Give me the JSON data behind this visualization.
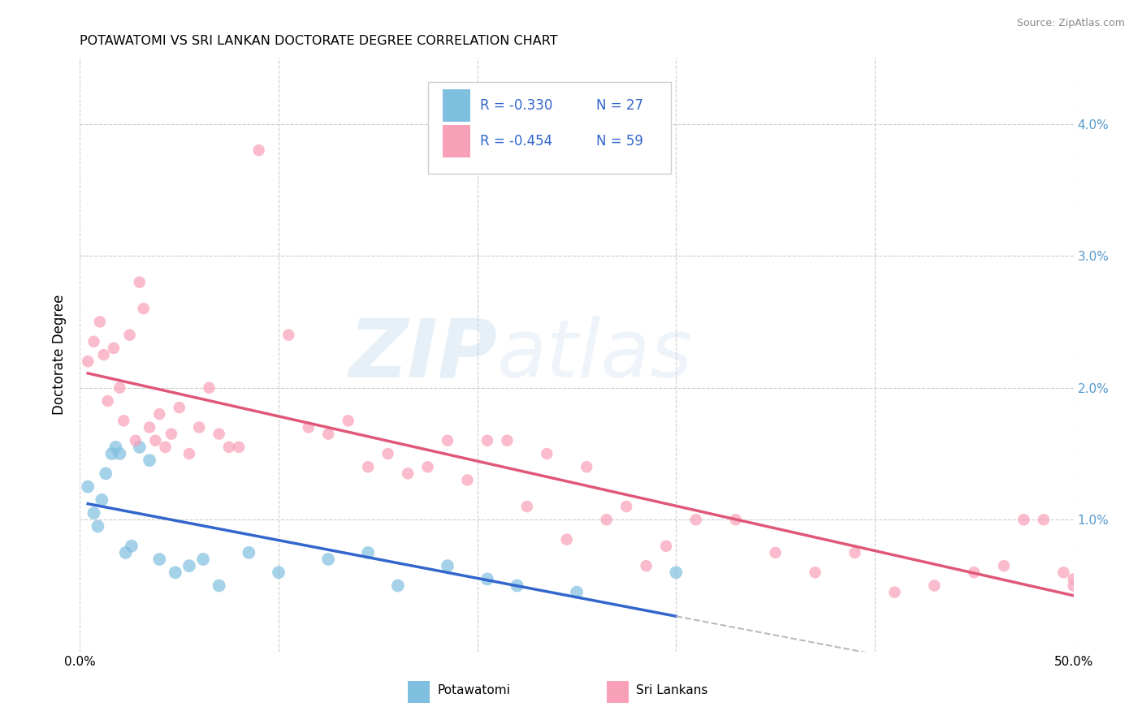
{
  "title": "POTAWATOMI VS SRI LANKAN DOCTORATE DEGREE CORRELATION CHART",
  "source": "Source: ZipAtlas.com",
  "ylabel": "Doctorate Degree",
  "watermark_zip": "ZIP",
  "watermark_atlas": "atlas",
  "legend_r1": "R = -0.330",
  "legend_n1": "N = 27",
  "legend_r2": "R = -0.454",
  "legend_n2": "N = 59",
  "legend_label1": "Potawatomi",
  "legend_label2": "Sri Lankans",
  "xlim": [
    0.0,
    50.0
  ],
  "ylim": [
    0.0,
    4.5
  ],
  "yticks": [
    0.0,
    1.0,
    2.0,
    3.0,
    4.0
  ],
  "ytick_labels": [
    "",
    "1.0%",
    "2.0%",
    "3.0%",
    "4.0%"
  ],
  "xticks": [
    0.0,
    10.0,
    20.0,
    30.0,
    40.0,
    50.0
  ],
  "xtick_labels": [
    "0.0%",
    "",
    "",
    "",
    "",
    "50.0%"
  ],
  "color_blue": "#7fbfdf",
  "color_blue_line": "#3366cc",
  "color_pink": "#f8a0b8",
  "color_pink_line": "#e05878",
  "color_dashed": "#bbbbbb",
  "bg_color": "#ffffff",
  "grid_color": "#cccccc",
  "right_axis_color": "#5599cc",
  "marker_size_blue": 130,
  "marker_size_pink": 110,
  "potawatomi_x": [
    0.4,
    0.7,
    0.9,
    1.1,
    1.3,
    1.6,
    1.8,
    2.0,
    2.3,
    2.6,
    3.0,
    3.5,
    4.0,
    4.8,
    5.5,
    6.2,
    7.0,
    8.5,
    10.0,
    12.5,
    14.5,
    16.0,
    18.5,
    20.5,
    22.0,
    25.0,
    30.0
  ],
  "potawatomi_y": [
    1.25,
    1.05,
    0.95,
    1.15,
    1.35,
    1.5,
    1.55,
    1.5,
    0.75,
    0.8,
    1.55,
    1.45,
    0.7,
    0.6,
    0.65,
    0.7,
    0.5,
    0.75,
    0.6,
    0.7,
    0.75,
    0.5,
    0.65,
    0.55,
    0.5,
    0.45,
    0.6
  ],
  "srilankans_x": [
    0.4,
    0.7,
    1.0,
    1.2,
    1.4,
    1.7,
    2.0,
    2.2,
    2.5,
    2.8,
    3.0,
    3.2,
    3.5,
    3.8,
    4.0,
    4.3,
    4.6,
    5.0,
    5.5,
    6.0,
    6.5,
    7.0,
    7.5,
    8.0,
    9.0,
    10.5,
    11.5,
    12.5,
    13.5,
    14.5,
    15.5,
    16.5,
    17.5,
    18.5,
    19.5,
    20.5,
    21.5,
    22.5,
    23.5,
    24.5,
    25.5,
    26.5,
    27.5,
    28.5,
    29.5,
    31.0,
    33.0,
    35.0,
    37.0,
    39.0,
    41.0,
    43.0,
    45.0,
    46.5,
    47.5,
    48.5,
    49.5,
    50.0,
    50.0
  ],
  "srilankans_y": [
    2.2,
    2.35,
    2.5,
    2.25,
    1.9,
    2.3,
    2.0,
    1.75,
    2.4,
    1.6,
    2.8,
    2.6,
    1.7,
    1.6,
    1.8,
    1.55,
    1.65,
    1.85,
    1.5,
    1.7,
    2.0,
    1.65,
    1.55,
    1.55,
    3.8,
    2.4,
    1.7,
    1.65,
    1.75,
    1.4,
    1.5,
    1.35,
    1.4,
    1.6,
    1.3,
    1.6,
    1.6,
    1.1,
    1.5,
    0.85,
    1.4,
    1.0,
    1.1,
    0.65,
    0.8,
    1.0,
    1.0,
    0.75,
    0.6,
    0.75,
    0.45,
    0.5,
    0.6,
    0.65,
    1.0,
    1.0,
    0.6,
    0.55,
    0.5
  ]
}
